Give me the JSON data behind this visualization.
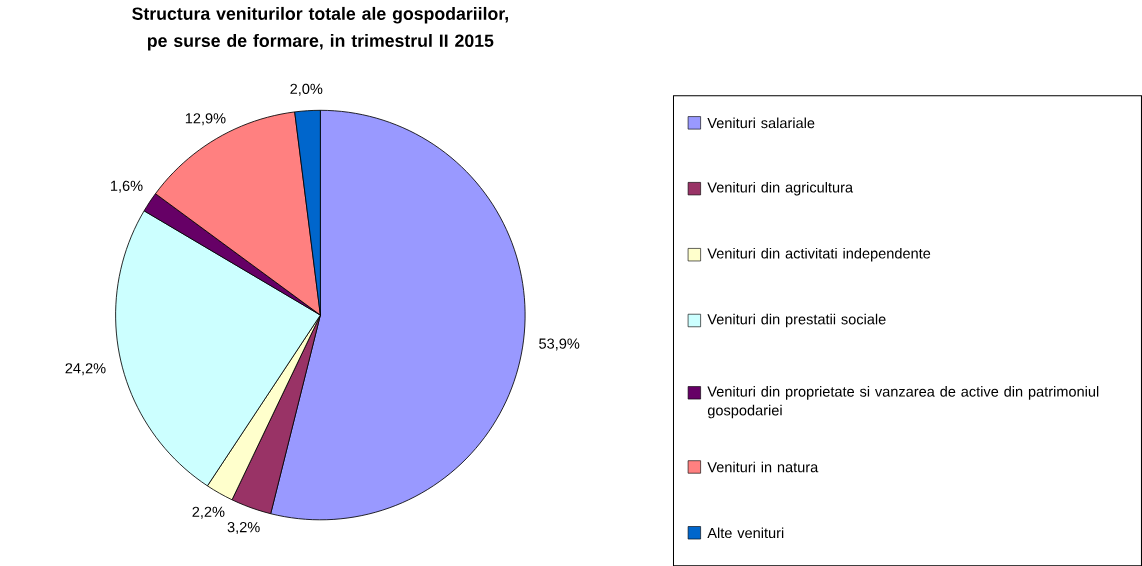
{
  "chart_data": {
    "type": "pie",
    "title": "Structura veniturilor totale ale gospodariilor, pe surse de formare, in trimestrul II 2015",
    "categories": [
      "Venituri salariale",
      "Venituri din agricultura",
      "Venituri din activitati independente",
      "Venituri din prestatii sociale",
      "Venituri din proprietate si vanzarea de active din patrimoniul gospodariei",
      "Venituri in natura",
      "Alte venituri"
    ],
    "values": [
      53.9,
      3.2,
      2.2,
      24.2,
      1.6,
      12.9,
      2.0
    ],
    "value_labels": [
      "53,9%",
      "3,2%",
      "2,2%",
      "24,2%",
      "1,6%",
      "12,9%",
      "2,0%"
    ],
    "colors": [
      "#9999ff",
      "#993366",
      "#ffffcc",
      "#ccffff",
      "#660066",
      "#ff8080",
      "#0066cc"
    ],
    "legend": "right"
  }
}
